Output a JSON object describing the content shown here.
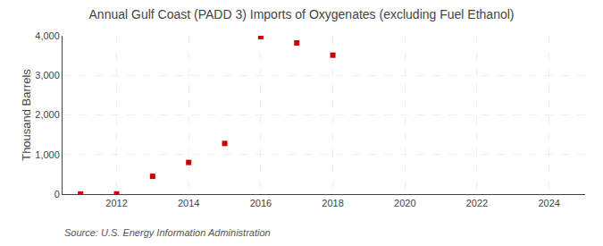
{
  "chart_data": {
    "type": "scatter",
    "title": "Annual Gulf Coast (PADD 3) Imports of Oxygenates (excluding Fuel Ethanol)",
    "ylabel": "Thousand Barrels",
    "annotations": [
      "Source: U.S. Energy Information Administration"
    ],
    "x": [
      2011,
      2012,
      2013,
      2014,
      2015,
      2016,
      2017,
      2018
    ],
    "values": [
      2,
      5,
      450,
      800,
      1280,
      3980,
      3820,
      3510
    ],
    "color": "#cc0000",
    "marker": "square",
    "xlim": [
      2010.5,
      2025
    ],
    "ylim": [
      0,
      4000
    ],
    "xticks": [
      2012,
      2014,
      2016,
      2018,
      2020,
      2022,
      2024
    ],
    "yticks": [
      0,
      {
        "value": 1000,
        "label": "1,000"
      },
      {
        "value": 2000,
        "label": "2,000"
      },
      {
        "value": 3000,
        "label": "3,000"
      },
      {
        "value": 4000,
        "label": "4,000"
      }
    ],
    "grid": true
  }
}
